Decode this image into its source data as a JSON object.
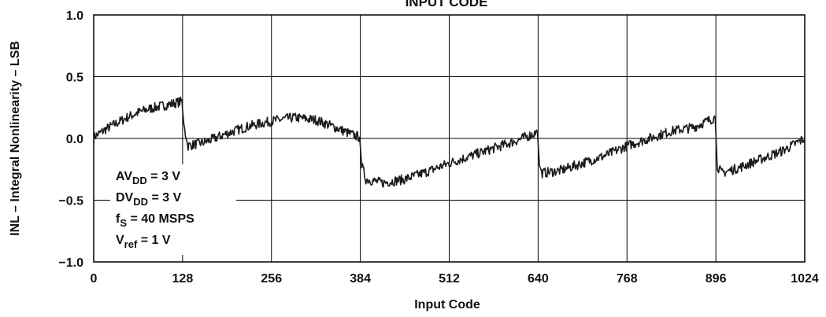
{
  "chart_data": {
    "type": "line",
    "title": "INPUT CODE",
    "xlabel": "Input Code",
    "ylabel": "INL – Integral Nonlinearity – LSB",
    "xlim": [
      0,
      1024
    ],
    "ylim": [
      -1.0,
      1.0
    ],
    "x_ticks": [
      0,
      128,
      256,
      384,
      512,
      640,
      768,
      896,
      1024
    ],
    "x_tick_labels": [
      "0",
      "128",
      "256",
      "384",
      "512",
      "640",
      "768",
      "896",
      "1024"
    ],
    "y_ticks": [
      1.0,
      0.5,
      0.0,
      -0.5,
      -1.0
    ],
    "y_tick_labels": [
      "1.0",
      "0.5",
      "0.0",
      "−0.5",
      "−1.0"
    ],
    "grid": true,
    "annotation": [
      {
        "main": "AV",
        "sub": "DD",
        "rest": " = 3 V"
      },
      {
        "main": "DV",
        "sub": "DD",
        "rest": " = 3 V"
      },
      {
        "main": "f",
        "sub": "S",
        "rest": " = 40 MSPS"
      },
      {
        "main": "V",
        "sub": "ref",
        "rest": " = 1 V"
      }
    ],
    "series": [
      {
        "values": [
          [
            0,
            0.01
          ],
          [
            16,
            0.07
          ],
          [
            32,
            0.12
          ],
          [
            48,
            0.17
          ],
          [
            64,
            0.21
          ],
          [
            80,
            0.24
          ],
          [
            96,
            0.26
          ],
          [
            112,
            0.28
          ],
          [
            127,
            0.3
          ],
          [
            132,
            0.02
          ],
          [
            136,
            -0.06
          ],
          [
            160,
            -0.03
          ],
          [
            192,
            0.04
          ],
          [
            224,
            0.1
          ],
          [
            256,
            0.14
          ],
          [
            288,
            0.17
          ],
          [
            320,
            0.15
          ],
          [
            352,
            0.08
          ],
          [
            368,
            0.04
          ],
          [
            383,
            0.01
          ],
          [
            386,
            -0.22
          ],
          [
            392,
            -0.33
          ],
          [
            416,
            -0.36
          ],
          [
            448,
            -0.33
          ],
          [
            480,
            -0.27
          ],
          [
            512,
            -0.2
          ],
          [
            544,
            -0.14
          ],
          [
            576,
            -0.08
          ],
          [
            608,
            -0.02
          ],
          [
            639,
            0.05
          ],
          [
            642,
            -0.22
          ],
          [
            646,
            -0.28
          ],
          [
            672,
            -0.26
          ],
          [
            704,
            -0.2
          ],
          [
            736,
            -0.14
          ],
          [
            768,
            -0.06
          ],
          [
            800,
            0.0
          ],
          [
            832,
            0.06
          ],
          [
            864,
            0.09
          ],
          [
            895,
            0.17
          ],
          [
            898,
            -0.22
          ],
          [
            904,
            -0.28
          ],
          [
            928,
            -0.24
          ],
          [
            960,
            -0.17
          ],
          [
            992,
            -0.1
          ],
          [
            1024,
            0.0
          ]
        ]
      }
    ]
  }
}
